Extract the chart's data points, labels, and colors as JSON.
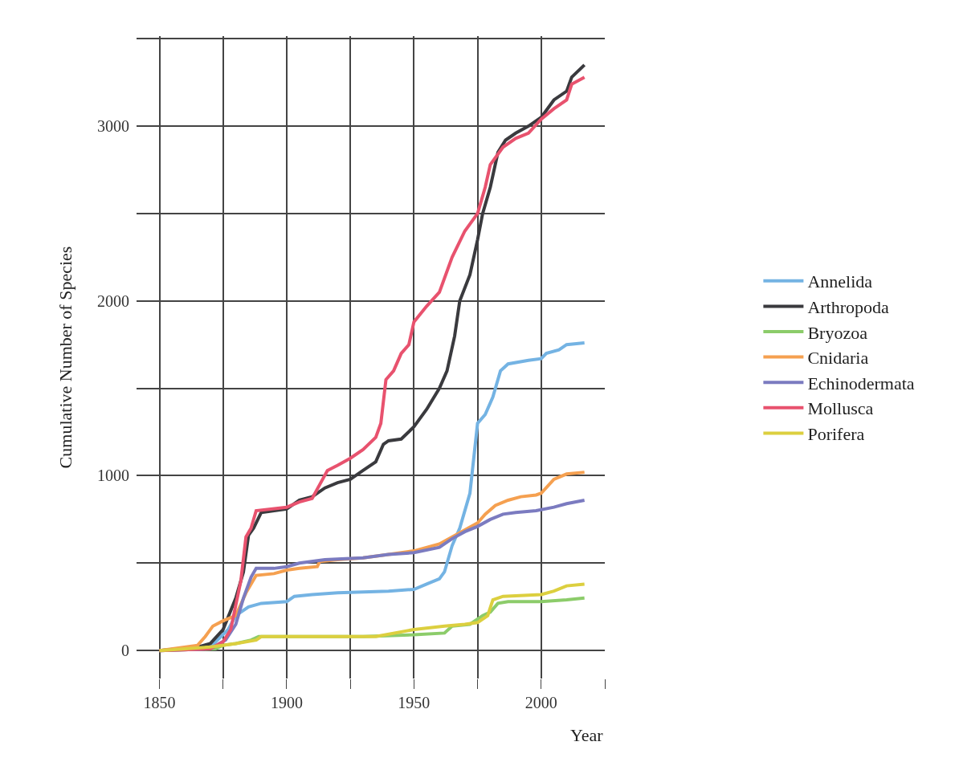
{
  "chart_data": {
    "type": "line",
    "xlabel": "Year",
    "ylabel": "Cumulative Number of Species",
    "xlim": [
      1841,
      2025
    ],
    "xticks": [
      1850,
      {
        "value": 1875,
        "label": null
      },
      1900,
      {
        "value": 1925,
        "label": null
      },
      1950,
      {
        "value": 1975,
        "label": null
      },
      2000,
      {
        "value": 2025,
        "label": null
      }
    ],
    "ylim": [
      -160,
      3515
    ],
    "yticks": [
      0,
      {
        "value": 500,
        "label": null
      },
      1000,
      {
        "value": 1500,
        "label": null
      },
      2000,
      {
        "value": 2500,
        "label": null
      },
      3000,
      {
        "value": 3500,
        "label": null
      }
    ],
    "grid": true,
    "legend": "right",
    "marker": "none",
    "line_style": "solid",
    "series": [
      {
        "name": "Annelida",
        "color": "#74b3e3",
        "x": [
          1850,
          1870,
          1877,
          1880,
          1885,
          1890,
          1900,
          1903,
          1910,
          1920,
          1930,
          1940,
          1950,
          1955,
          1960,
          1962,
          1965,
          1968,
          1972,
          1975,
          1978,
          1981,
          1984,
          1987,
          1995,
          2000,
          2002,
          2007,
          2010,
          2017
        ],
        "values": [
          0,
          20,
          120,
          200,
          250,
          270,
          280,
          310,
          320,
          330,
          335,
          340,
          350,
          380,
          410,
          450,
          600,
          700,
          900,
          1300,
          1350,
          1450,
          1600,
          1640,
          1660,
          1670,
          1700,
          1720,
          1750,
          1760
        ]
      },
      {
        "name": "Arthropoda",
        "color": "#3a3a3e",
        "x": [
          1850,
          1865,
          1870,
          1875,
          1880,
          1883,
          1885,
          1887,
          1890,
          1900,
          1905,
          1910,
          1915,
          1920,
          1925,
          1930,
          1935,
          1938,
          1940,
          1945,
          1950,
          1955,
          1960,
          1963,
          1966,
          1968,
          1972,
          1975,
          1977,
          1980,
          1983,
          1986,
          1990,
          1995,
          2000,
          2005,
          2010,
          2012,
          2017
        ],
        "values": [
          0,
          20,
          40,
          120,
          300,
          450,
          660,
          700,
          790,
          810,
          860,
          880,
          930,
          960,
          980,
          1030,
          1080,
          1180,
          1200,
          1210,
          1280,
          1380,
          1500,
          1600,
          1800,
          2000,
          2150,
          2350,
          2500,
          2650,
          2850,
          2920,
          2960,
          3000,
          3050,
          3150,
          3200,
          3280,
          3350
        ]
      },
      {
        "name": "Bryozoa",
        "color": "#8ccc6a",
        "x": [
          1850,
          1872,
          1875,
          1880,
          1886,
          1889,
          1900,
          1930,
          1950,
          1962,
          1965,
          1972,
          1977,
          1980,
          1983,
          1987,
          2000,
          2010,
          2017
        ],
        "values": [
          0,
          10,
          30,
          40,
          60,
          80,
          80,
          80,
          90,
          100,
          140,
          150,
          200,
          220,
          270,
          280,
          280,
          290,
          300
        ]
      },
      {
        "name": "Cnidaria",
        "color": "#f5a050",
        "x": [
          1850,
          1865,
          1868,
          1871,
          1875,
          1880,
          1884,
          1888,
          1895,
          1900,
          1905,
          1912,
          1913,
          1920,
          1930,
          1940,
          1950,
          1960,
          1965,
          1970,
          1975,
          1978,
          1982,
          1987,
          1992,
          1998,
          2000,
          2005,
          2010,
          2017
        ],
        "values": [
          0,
          30,
          80,
          140,
          170,
          200,
          330,
          430,
          440,
          460,
          470,
          480,
          510,
          520,
          530,
          550,
          570,
          610,
          650,
          690,
          730,
          780,
          830,
          860,
          880,
          890,
          900,
          980,
          1010,
          1020
        ]
      },
      {
        "name": "Echinodermata",
        "color": "#7b7bc0",
        "x": [
          1850,
          1870,
          1876,
          1880,
          1883,
          1886,
          1888,
          1895,
          1900,
          1905,
          1915,
          1930,
          1940,
          1950,
          1960,
          1965,
          1970,
          1975,
          1980,
          1985,
          1990,
          1998,
          2005,
          2010,
          2017
        ],
        "values": [
          0,
          10,
          60,
          150,
          300,
          420,
          470,
          470,
          480,
          500,
          520,
          530,
          550,
          560,
          590,
          640,
          680,
          710,
          750,
          780,
          790,
          800,
          820,
          840,
          860
        ]
      },
      {
        "name": "Mollusca",
        "color": "#e8526e",
        "x": [
          1850,
          1870,
          1875,
          1878,
          1882,
          1884,
          1886,
          1888,
          1900,
          1905,
          1910,
          1913,
          1916,
          1920,
          1925,
          1930,
          1935,
          1937,
          1939,
          1942,
          1945,
          1948,
          1950,
          1955,
          1960,
          1965,
          1970,
          1975,
          1978,
          1980,
          1985,
          1990,
          1995,
          2000,
          2005,
          2010,
          2012,
          2017
        ],
        "values": [
          0,
          10,
          50,
          120,
          400,
          650,
          700,
          800,
          820,
          850,
          870,
          950,
          1030,
          1060,
          1100,
          1150,
          1220,
          1300,
          1550,
          1600,
          1700,
          1750,
          1880,
          1970,
          2050,
          2250,
          2400,
          2500,
          2650,
          2780,
          2880,
          2930,
          2960,
          3040,
          3100,
          3150,
          3240,
          3280
        ]
      },
      {
        "name": "Porifera",
        "color": "#dccf3f",
        "x": [
          1850,
          1870,
          1880,
          1888,
          1890,
          1920,
          1935,
          1950,
          1962,
          1970,
          1975,
          1979,
          1981,
          1985,
          2000,
          2005,
          2010,
          2017
        ],
        "values": [
          0,
          20,
          40,
          60,
          80,
          80,
          80,
          120,
          140,
          150,
          160,
          200,
          290,
          310,
          320,
          340,
          370,
          380
        ]
      }
    ]
  }
}
